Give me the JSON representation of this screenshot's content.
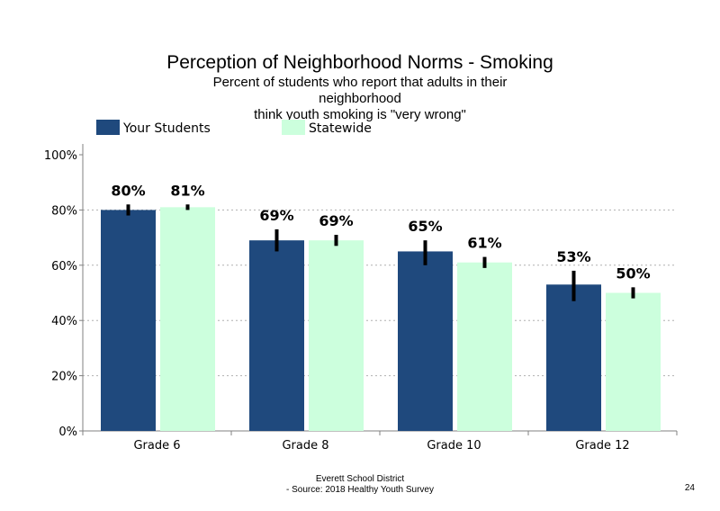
{
  "title": "Perception of Neighborhood Norms - Smoking",
  "subtitle_line1": "Percent of students who report that adults in their neighborhood",
  "subtitle_line2": "think youth smoking is \"very wrong\"",
  "footer_line1": "Everett School District",
  "footer_line2": "- Source: 2018 Healthy Youth Survey",
  "page_number": "24",
  "colors": {
    "your_students": "#1f497d",
    "statewide": "#ccffdd",
    "error_bar": "#000000",
    "grid": "#b0b0b0"
  },
  "chart_data": {
    "type": "bar",
    "categories": [
      "Grade 6",
      "Grade 8",
      "Grade 10",
      "Grade 12"
    ],
    "series": [
      {
        "name": "Your Students",
        "values": [
          80,
          69,
          65,
          53
        ],
        "labels": [
          "80%",
          "69%",
          "65%",
          "53%"
        ],
        "error_low": [
          78,
          65,
          60,
          47
        ],
        "error_high": [
          82,
          73,
          69,
          58
        ]
      },
      {
        "name": "Statewide",
        "values": [
          81,
          69,
          61,
          50
        ],
        "labels": [
          "81%",
          "69%",
          "61%",
          "50%"
        ],
        "error_low": [
          80,
          67,
          59,
          48
        ],
        "error_high": [
          82,
          71,
          63,
          52
        ]
      }
    ],
    "y_ticks": [
      "0%",
      "20%",
      "40%",
      "60%",
      "80%",
      "100%"
    ],
    "ylim": [
      0,
      100
    ],
    "gridlines": [
      20,
      40,
      60,
      80
    ],
    "grid": "dotted horizontal",
    "legend": "top-left"
  }
}
